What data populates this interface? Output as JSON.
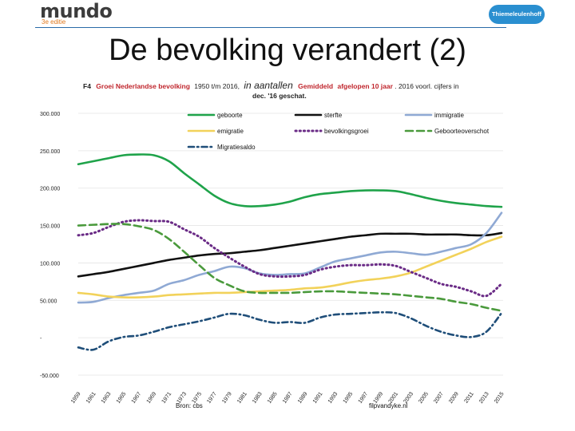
{
  "logo": {
    "name": "mundo",
    "edition": "3e editie"
  },
  "badge": "Thiemeleulenhoff",
  "slide_title": "De bevolking verandert (2)",
  "caption": {
    "figure_id": "F4",
    "text1": "Groei Nederlandse bevolking",
    "text2": "1950 t/m 2016,",
    "text3": "in aantallen",
    "text4": "Gemiddeld",
    "text5": "afgelopen 10 jaar",
    "text6": ". 2016 voorl. cijfers in",
    "text7": "dec. '16 geschat.",
    "colors": {
      "red": "#c0262d",
      "dark": "#222222"
    }
  },
  "footer": {
    "left": "Bron: cbs",
    "right": "filpvandyke.nl"
  },
  "chart_data": {
    "type": "line",
    "x": [
      1959,
      1961,
      1963,
      1965,
      1967,
      1969,
      1971,
      1973,
      1975,
      1977,
      1979,
      1981,
      1983,
      1985,
      1987,
      1989,
      1991,
      1993,
      1995,
      1997,
      1999,
      2001,
      2003,
      2005,
      2007,
      2009,
      2011,
      2013,
      2015
    ],
    "xticks": [
      "1959",
      "1961",
      "1963",
      "1965",
      "1967",
      "1969",
      "1971",
      "1973",
      "1975",
      "1977",
      "1979",
      "1981",
      "1983",
      "1985",
      "1987",
      "1989",
      "1991",
      "1993",
      "1995",
      "1997",
      "1999",
      "2001",
      "2003",
      "2005",
      "2007",
      "2009",
      "2011",
      "2013",
      "2015"
    ],
    "yticks": [
      {
        "value": 300000,
        "label": "300.000"
      },
      {
        "value": 250000,
        "label": "250.000"
      },
      {
        "value": 200000,
        "label": "200.000"
      },
      {
        "value": 150000,
        "label": "150.000"
      },
      {
        "value": 100000,
        "label": "100.000"
      },
      {
        "value": 50000,
        "label": "50.000"
      },
      {
        "value": 0,
        "label": "-"
      },
      {
        "value": -50000,
        "label": "-50.000"
      }
    ],
    "ylim": [
      -50000,
      300000
    ],
    "grid": true,
    "legend_position": "top",
    "series": [
      {
        "name": "geboorte",
        "color": "#1fa34a",
        "dash": "solid",
        "values": [
          232000,
          236000,
          240000,
          244000,
          245000,
          244000,
          236000,
          220000,
          205000,
          190000,
          180000,
          176000,
          176000,
          178000,
          182000,
          188000,
          192000,
          194000,
          196000,
          197000,
          197000,
          196000,
          192000,
          187000,
          183000,
          180000,
          178000,
          176000,
          175000
        ]
      },
      {
        "name": "sterfte",
        "color": "#111111",
        "dash": "solid",
        "values": [
          82000,
          85000,
          88000,
          92000,
          96000,
          100000,
          104000,
          107000,
          110000,
          112000,
          113000,
          115000,
          117000,
          120000,
          123000,
          126000,
          129000,
          132000,
          135000,
          137000,
          139000,
          139000,
          139000,
          138000,
          138000,
          138000,
          137000,
          137000,
          140000
        ]
      },
      {
        "name": "immigratie",
        "color": "#8fa9d4",
        "dash": "solid",
        "values": [
          47000,
          48000,
          53000,
          57000,
          60000,
          63000,
          72000,
          77000,
          84000,
          89000,
          95000,
          93000,
          86000,
          84000,
          85000,
          86000,
          94000,
          102000,
          106000,
          110000,
          114000,
          115000,
          113000,
          111000,
          115000,
          120000,
          125000,
          140000,
          167000
        ]
      },
      {
        "name": "emigratie",
        "color": "#f2d25a",
        "dash": "solid",
        "values": [
          60000,
          58000,
          55000,
          54000,
          54000,
          55000,
          57000,
          58000,
          59000,
          60000,
          60000,
          61000,
          62000,
          63000,
          64000,
          66000,
          67000,
          70000,
          74000,
          77000,
          79000,
          82000,
          87000,
          95000,
          103000,
          111000,
          119000,
          128000,
          135000
        ]
      },
      {
        "name": "bevolkingsgroei",
        "color": "#6a2b86",
        "dash": "dot",
        "values": [
          137000,
          140000,
          148000,
          155000,
          157000,
          156000,
          155000,
          145000,
          135000,
          120000,
          107000,
          95000,
          85000,
          82000,
          82000,
          84000,
          91000,
          95000,
          97000,
          97000,
          98000,
          96000,
          88000,
          80000,
          72000,
          68000,
          62000,
          56000,
          72000
        ]
      },
      {
        "name": "Geboorteoverschot",
        "color": "#4a9a3c",
        "dash": "dash",
        "values": [
          150000,
          151000,
          152000,
          152000,
          149000,
          144000,
          132000,
          115000,
          97000,
          80000,
          70000,
          62000,
          60000,
          60000,
          60000,
          61000,
          62000,
          62000,
          61000,
          60000,
          59000,
          58000,
          56000,
          54000,
          52000,
          48000,
          45000,
          40000,
          36000
        ]
      },
      {
        "name": "Migratiesaldo",
        "color": "#1f4e79",
        "dash": "dashdot",
        "values": [
          -13000,
          -16000,
          -5000,
          1000,
          3000,
          8000,
          14000,
          18000,
          22000,
          27000,
          32000,
          30000,
          24000,
          20000,
          21000,
          20000,
          27000,
          31000,
          32000,
          33000,
          34000,
          33000,
          26000,
          16000,
          8000,
          3000,
          1000,
          8000,
          33000
        ]
      }
    ]
  }
}
